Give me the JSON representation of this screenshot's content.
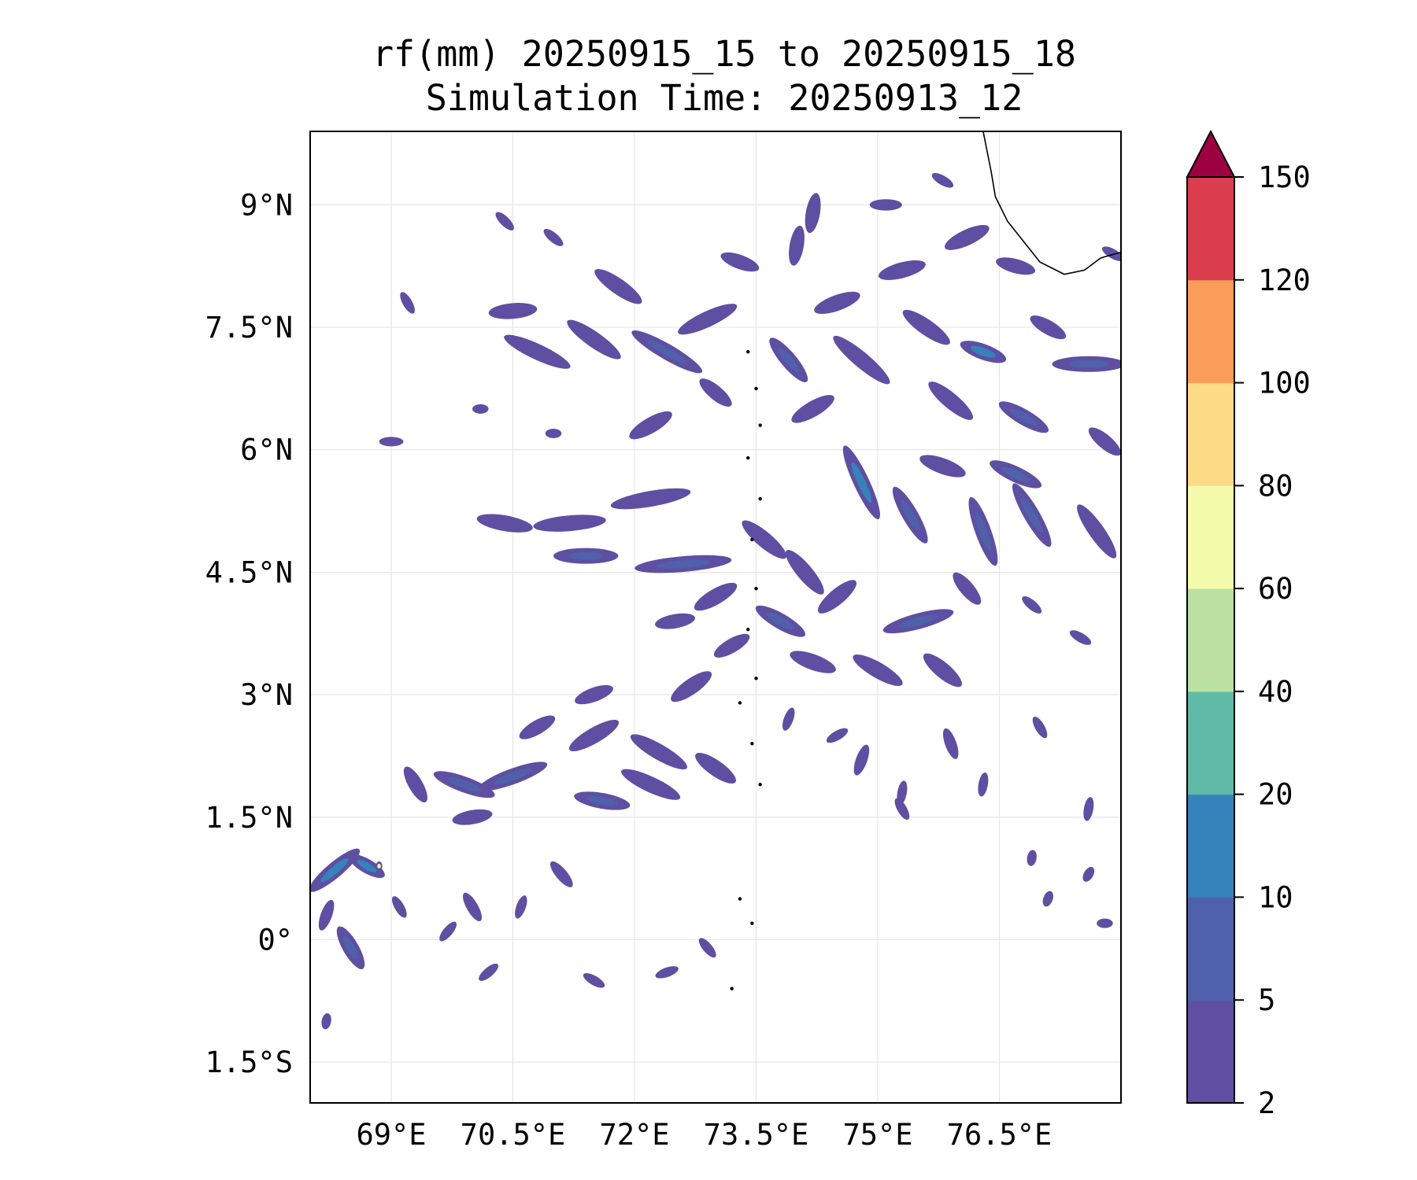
{
  "title": {
    "line1": "rf(mm) 20250915_15 to 20250915_18",
    "line2": "Simulation Time: 20250913_12"
  },
  "map": {
    "lon_range": [
      68.0,
      78.0
    ],
    "lat_range": [
      -2.0,
      9.9
    ],
    "lon_ticks": [
      {
        "value": 69.0,
        "label": "69°E"
      },
      {
        "value": 70.5,
        "label": "70.5°E"
      },
      {
        "value": 72.0,
        "label": "72°E"
      },
      {
        "value": 73.5,
        "label": "73.5°E"
      },
      {
        "value": 75.0,
        "label": "75°E"
      },
      {
        "value": 76.5,
        "label": "76.5°E"
      }
    ],
    "lat_ticks": [
      {
        "value": 9.0,
        "label": "9°N"
      },
      {
        "value": 7.5,
        "label": "7.5°N"
      },
      {
        "value": 6.0,
        "label": "6°N"
      },
      {
        "value": 4.5,
        "label": "4.5°N"
      },
      {
        "value": 3.0,
        "label": "3°N"
      },
      {
        "value": 1.5,
        "label": "1.5°N"
      },
      {
        "value": 0.0,
        "label": "0°"
      },
      {
        "value": -1.5,
        "label": "1.5°S"
      }
    ],
    "gridlines": true,
    "coastline": [
      [
        76.3,
        9.9
      ],
      [
        76.4,
        9.4
      ],
      [
        76.45,
        9.1
      ],
      [
        76.6,
        8.8
      ],
      [
        76.8,
        8.55
      ],
      [
        77.0,
        8.3
      ],
      [
        77.3,
        8.15
      ],
      [
        77.55,
        8.2
      ],
      [
        77.75,
        8.35
      ],
      [
        78.0,
        8.42
      ]
    ],
    "islands": [
      [
        73.4,
        7.2
      ],
      [
        73.5,
        6.75
      ],
      [
        73.55,
        6.3
      ],
      [
        73.4,
        5.9
      ],
      [
        73.55,
        5.4
      ],
      [
        73.45,
        4.9
      ],
      [
        73.5,
        4.3
      ],
      [
        73.4,
        3.8
      ],
      [
        73.5,
        3.2
      ],
      [
        73.3,
        2.9
      ],
      [
        73.45,
        2.4
      ],
      [
        73.55,
        1.9
      ],
      [
        73.3,
        0.5
      ],
      [
        73.45,
        0.2
      ],
      [
        73.2,
        -0.6
      ]
    ]
  },
  "rain_cells": [
    {
      "lon": 72.4,
      "lat": 7.2,
      "len": 1.0,
      "ang": -30,
      "v": 4
    },
    {
      "lon": 71.5,
      "lat": 7.35,
      "len": 0.8,
      "ang": -35,
      "v": 3
    },
    {
      "lon": 70.5,
      "lat": 7.7,
      "len": 0.6,
      "ang": 5,
      "v": 3
    },
    {
      "lon": 70.8,
      "lat": 7.2,
      "len": 0.9,
      "ang": -25,
      "v": 3
    },
    {
      "lon": 71.8,
      "lat": 8.0,
      "len": 0.7,
      "ang": -35,
      "v": 3
    },
    {
      "lon": 72.9,
      "lat": 7.6,
      "len": 0.8,
      "ang": 25,
      "v": 3
    },
    {
      "lon": 73.9,
      "lat": 7.1,
      "len": 0.7,
      "ang": -50,
      "v": 4
    },
    {
      "lon": 74.5,
      "lat": 7.8,
      "len": 0.6,
      "ang": 20,
      "v": 3
    },
    {
      "lon": 74.8,
      "lat": 7.1,
      "len": 0.9,
      "ang": -40,
      "v": 3
    },
    {
      "lon": 75.6,
      "lat": 7.5,
      "len": 0.7,
      "ang": -35,
      "v": 3
    },
    {
      "lon": 76.3,
      "lat": 7.2,
      "len": 0.6,
      "ang": -20,
      "v": 6
    },
    {
      "lon": 77.6,
      "lat": 7.05,
      "len": 0.9,
      "ang": 0,
      "v": 4
    },
    {
      "lon": 76.1,
      "lat": 8.6,
      "len": 0.6,
      "ang": 25,
      "v": 3
    },
    {
      "lon": 75.3,
      "lat": 8.2,
      "len": 0.6,
      "ang": 15,
      "v": 3
    },
    {
      "lon": 74.2,
      "lat": 8.9,
      "len": 0.5,
      "ang": 80,
      "v": 3
    },
    {
      "lon": 76.7,
      "lat": 8.25,
      "len": 0.5,
      "ang": -15,
      "v": 3
    },
    {
      "lon": 77.1,
      "lat": 7.5,
      "len": 0.5,
      "ang": -30,
      "v": 3
    },
    {
      "lon": 76.8,
      "lat": 6.4,
      "len": 0.7,
      "ang": -30,
      "v": 4
    },
    {
      "lon": 75.9,
      "lat": 6.6,
      "len": 0.7,
      "ang": -40,
      "v": 3
    },
    {
      "lon": 74.2,
      "lat": 6.5,
      "len": 0.6,
      "ang": 30,
      "v": 3
    },
    {
      "lon": 73.0,
      "lat": 6.7,
      "len": 0.5,
      "ang": -40,
      "v": 3
    },
    {
      "lon": 72.2,
      "lat": 6.3,
      "len": 0.6,
      "ang": 30,
      "v": 3
    },
    {
      "lon": 74.8,
      "lat": 5.6,
      "len": 1.0,
      "ang": -65,
      "v": 6
    },
    {
      "lon": 75.4,
      "lat": 5.2,
      "len": 0.8,
      "ang": -60,
      "v": 4
    },
    {
      "lon": 76.3,
      "lat": 5.0,
      "len": 0.9,
      "ang": -70,
      "v": 4
    },
    {
      "lon": 76.9,
      "lat": 5.2,
      "len": 0.9,
      "ang": -60,
      "v": 5
    },
    {
      "lon": 77.7,
      "lat": 5.0,
      "len": 0.8,
      "ang": -55,
      "v": 3
    },
    {
      "lon": 75.8,
      "lat": 5.8,
      "len": 0.6,
      "ang": -20,
      "v": 3
    },
    {
      "lon": 76.7,
      "lat": 5.7,
      "len": 0.7,
      "ang": -25,
      "v": 5
    },
    {
      "lon": 77.8,
      "lat": 6.1,
      "len": 0.5,
      "ang": -40,
      "v": 3
    },
    {
      "lon": 72.2,
      "lat": 5.4,
      "len": 1.0,
      "ang": 10,
      "v": 3
    },
    {
      "lon": 71.2,
      "lat": 5.1,
      "len": 0.9,
      "ang": 5,
      "v": 3
    },
    {
      "lon": 70.4,
      "lat": 5.1,
      "len": 0.7,
      "ang": -10,
      "v": 3
    },
    {
      "lon": 72.6,
      "lat": 4.6,
      "len": 1.2,
      "ang": 5,
      "v": 4
    },
    {
      "lon": 71.4,
      "lat": 4.7,
      "len": 0.8,
      "ang": 0,
      "v": 4
    },
    {
      "lon": 73.6,
      "lat": 4.9,
      "len": 0.7,
      "ang": -40,
      "v": 3
    },
    {
      "lon": 74.1,
      "lat": 4.5,
      "len": 0.7,
      "ang": -50,
      "v": 3
    },
    {
      "lon": 74.5,
      "lat": 4.2,
      "len": 0.6,
      "ang": 40,
      "v": 3
    },
    {
      "lon": 75.5,
      "lat": 3.9,
      "len": 0.9,
      "ang": 15,
      "v": 5
    },
    {
      "lon": 76.1,
      "lat": 4.3,
      "len": 0.5,
      "ang": -50,
      "v": 3
    },
    {
      "lon": 73.0,
      "lat": 4.2,
      "len": 0.6,
      "ang": 30,
      "v": 3
    },
    {
      "lon": 73.8,
      "lat": 3.9,
      "len": 0.7,
      "ang": -30,
      "v": 4
    },
    {
      "lon": 72.5,
      "lat": 3.9,
      "len": 0.5,
      "ang": 10,
      "v": 3
    },
    {
      "lon": 74.2,
      "lat": 3.4,
      "len": 0.6,
      "ang": -20,
      "v": 3
    },
    {
      "lon": 75.0,
      "lat": 3.3,
      "len": 0.7,
      "ang": -30,
      "v": 3
    },
    {
      "lon": 75.8,
      "lat": 3.3,
      "len": 0.6,
      "ang": -40,
      "v": 3
    },
    {
      "lon": 73.2,
      "lat": 3.6,
      "len": 0.5,
      "ang": 30,
      "v": 3
    },
    {
      "lon": 72.7,
      "lat": 3.1,
      "len": 0.6,
      "ang": 35,
      "v": 3
    },
    {
      "lon": 71.5,
      "lat": 3.0,
      "len": 0.5,
      "ang": 20,
      "v": 3
    },
    {
      "lon": 72.3,
      "lat": 2.3,
      "len": 0.8,
      "ang": -30,
      "v": 3
    },
    {
      "lon": 73.0,
      "lat": 2.1,
      "len": 0.6,
      "ang": -35,
      "v": 3
    },
    {
      "lon": 71.5,
      "lat": 2.5,
      "len": 0.7,
      "ang": 30,
      "v": 3
    },
    {
      "lon": 71.6,
      "lat": 1.7,
      "len": 0.7,
      "ang": -10,
      "v": 4
    },
    {
      "lon": 72.2,
      "lat": 1.9,
      "len": 0.8,
      "ang": -25,
      "v": 3
    },
    {
      "lon": 70.5,
      "lat": 2.0,
      "len": 0.9,
      "ang": 20,
      "v": 5
    },
    {
      "lon": 69.9,
      "lat": 1.9,
      "len": 0.8,
      "ang": -20,
      "v": 5
    },
    {
      "lon": 69.3,
      "lat": 1.9,
      "len": 0.5,
      "ang": -60,
      "v": 3
    },
    {
      "lon": 70.0,
      "lat": 1.5,
      "len": 0.5,
      "ang": 10,
      "v": 3
    },
    {
      "lon": 70.8,
      "lat": 2.6,
      "len": 0.5,
      "ang": 30,
      "v": 3
    },
    {
      "lon": 68.3,
      "lat": 0.85,
      "len": 0.8,
      "ang": 40,
      "v": 6
    },
    {
      "lon": 68.7,
      "lat": 0.9,
      "len": 0.5,
      "ang": -30,
      "v": 6
    },
    {
      "lon": 68.85,
      "lat": 0.9,
      "len": 0.08,
      "ang": 0,
      "v": 8
    },
    {
      "lon": 68.5,
      "lat": -0.1,
      "len": 0.6,
      "ang": -60,
      "v": 4
    },
    {
      "lon": 68.2,
      "lat": 0.3,
      "len": 0.4,
      "ang": 70,
      "v": 3
    },
    {
      "lon": 69.1,
      "lat": 0.4,
      "len": 0.3,
      "ang": -60,
      "v": 3
    },
    {
      "lon": 69.7,
      "lat": 0.1,
      "len": 0.3,
      "ang": 50,
      "v": 3
    },
    {
      "lon": 70.0,
      "lat": 0.4,
      "len": 0.4,
      "ang": -60,
      "v": 3
    },
    {
      "lon": 70.6,
      "lat": 0.4,
      "len": 0.3,
      "ang": 70,
      "v": 3
    },
    {
      "lon": 71.1,
      "lat": 0.8,
      "len": 0.4,
      "ang": -50,
      "v": 3
    },
    {
      "lon": 70.2,
      "lat": -0.4,
      "len": 0.3,
      "ang": 40,
      "v": 3
    },
    {
      "lon": 71.5,
      "lat": -0.5,
      "len": 0.3,
      "ang": -30,
      "v": 3
    },
    {
      "lon": 72.4,
      "lat": -0.4,
      "len": 0.3,
      "ang": 20,
      "v": 3
    },
    {
      "lon": 72.9,
      "lat": -0.1,
      "len": 0.3,
      "ang": -50,
      "v": 3
    },
    {
      "lon": 68.2,
      "lat": -1.0,
      "len": 0.2,
      "ang": 80,
      "v": 3
    },
    {
      "lon": 76.9,
      "lat": 4.1,
      "len": 0.3,
      "ang": -40,
      "v": 3
    },
    {
      "lon": 77.5,
      "lat": 3.7,
      "len": 0.3,
      "ang": -30,
      "v": 3
    },
    {
      "lon": 74.8,
      "lat": 2.2,
      "len": 0.4,
      "ang": 70,
      "v": 3
    },
    {
      "lon": 75.3,
      "lat": 1.8,
      "len": 0.3,
      "ang": 80,
      "v": 3
    },
    {
      "lon": 75.9,
      "lat": 2.4,
      "len": 0.4,
      "ang": -70,
      "v": 3
    },
    {
      "lon": 76.3,
      "lat": 1.9,
      "len": 0.3,
      "ang": 80,
      "v": 3
    },
    {
      "lon": 75.3,
      "lat": 1.6,
      "len": 0.3,
      "ang": -60,
      "v": 3
    },
    {
      "lon": 77.0,
      "lat": 2.6,
      "len": 0.3,
      "ang": -60,
      "v": 3
    },
    {
      "lon": 77.6,
      "lat": 1.6,
      "len": 0.3,
      "ang": 80,
      "v": 3
    },
    {
      "lon": 73.9,
      "lat": 2.7,
      "len": 0.3,
      "ang": 70,
      "v": 3
    },
    {
      "lon": 74.5,
      "lat": 2.5,
      "len": 0.3,
      "ang": 30,
      "v": 3
    },
    {
      "lon": 76.9,
      "lat": 1.0,
      "len": 0.2,
      "ang": 80,
      "v": 3
    },
    {
      "lon": 77.8,
      "lat": 0.2,
      "len": 0.2,
      "ang": 0,
      "v": 3
    },
    {
      "lon": 77.1,
      "lat": 0.5,
      "len": 0.2,
      "ang": 70,
      "v": 3
    },
    {
      "lon": 77.6,
      "lat": 0.8,
      "len": 0.2,
      "ang": 60,
      "v": 3
    },
    {
      "lon": 73.3,
      "lat": 8.3,
      "len": 0.5,
      "ang": -20,
      "v": 3
    },
    {
      "lon": 74.0,
      "lat": 8.5,
      "len": 0.5,
      "ang": 80,
      "v": 3
    },
    {
      "lon": 69.2,
      "lat": 7.8,
      "len": 0.3,
      "ang": -60,
      "v": 3
    },
    {
      "lon": 70.4,
      "lat": 8.8,
      "len": 0.3,
      "ang": -45,
      "v": 3
    },
    {
      "lon": 71.0,
      "lat": 8.6,
      "len": 0.3,
      "ang": -40,
      "v": 3
    },
    {
      "lon": 69.0,
      "lat": 6.1,
      "len": 0.3,
      "ang": 0,
      "v": 3
    },
    {
      "lon": 70.1,
      "lat": 6.5,
      "len": 0.2,
      "ang": 0,
      "v": 3
    },
    {
      "lon": 71.0,
      "lat": 6.2,
      "len": 0.2,
      "ang": 0,
      "v": 3
    },
    {
      "lon": 75.1,
      "lat": 9.0,
      "len": 0.4,
      "ang": 0,
      "v": 3
    },
    {
      "lon": 75.8,
      "lat": 9.3,
      "len": 0.3,
      "ang": -30,
      "v": 3
    },
    {
      "lon": 77.9,
      "lat": 8.4,
      "len": 0.3,
      "ang": -30,
      "v": 3
    }
  ],
  "colorbar": {
    "bounds": [
      "2",
      "5",
      "10",
      "20",
      "40",
      "60",
      "80",
      "100",
      "120",
      "150"
    ],
    "colors": [
      "#5e4fa2",
      "#4f61aa",
      "#3682ba",
      "#5fbaa8",
      "#bbe1a3",
      "#f4fbab",
      "#fddb86",
      "#f99d59",
      "#d93d4e"
    ],
    "extend_color": "#9e0142",
    "extend": "max"
  },
  "style": {
    "coast_color": "#000000",
    "grid_color": "#e6e6e6"
  }
}
